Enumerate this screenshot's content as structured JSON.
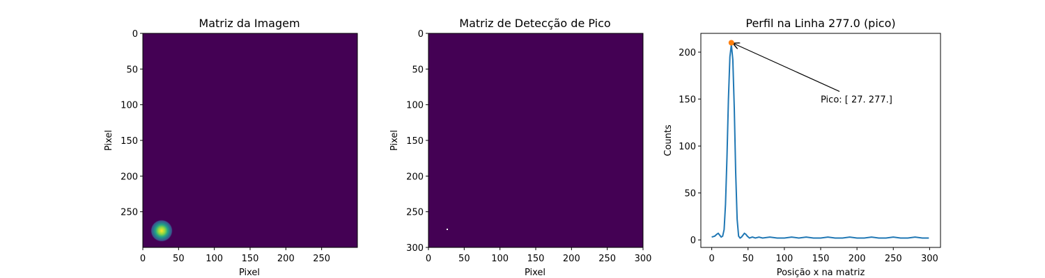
{
  "figure": {
    "colors": {
      "background": "#440154",
      "gaussian_peak": "#fde725",
      "profile_line": "#1f77b4",
      "peak_marker": "#ff7f0e",
      "detection_pixel": "#ffffff"
    },
    "left": {
      "title": "Matriz da Imagem",
      "xlabel": "Pixel",
      "ylabel": "Pixel",
      "xticks": [
        "0",
        "50",
        "100",
        "150",
        "200",
        "250"
      ],
      "yticks": [
        "0",
        "50",
        "100",
        "150",
        "200",
        "250"
      ]
    },
    "middle": {
      "title": "Matriz de Detecção de Pico",
      "xlabel": "Pixel",
      "ylabel": "Pixel",
      "xticks": [
        "0",
        "50",
        "100",
        "150",
        "200",
        "250",
        "300"
      ],
      "yticks": [
        "0",
        "50",
        "100",
        "150",
        "200",
        "250",
        "300"
      ]
    },
    "right": {
      "title": "Perfil na Linha 277.0 (pico)",
      "xlabel": "Posição x na matriz",
      "ylabel": "Counts",
      "xticks": [
        "0",
        "50",
        "100",
        "150",
        "200",
        "250",
        "300"
      ],
      "yticks": [
        "0",
        "50",
        "100",
        "150",
        "200"
      ],
      "annotation": "Pico: [ 27. 277.]"
    }
  },
  "chart_data": [
    {
      "type": "heatmap",
      "title": "Matriz da Imagem",
      "xlabel": "Pixel",
      "ylabel": "Pixel",
      "xlim": [
        0,
        300
      ],
      "ylim": [
        300,
        0
      ],
      "colormap": "viridis",
      "peak": {
        "x": 27,
        "y": 277,
        "value": 210
      }
    },
    {
      "type": "heatmap",
      "title": "Matriz de Detecção de Pico",
      "xlabel": "Pixel",
      "ylabel": "Pixel",
      "xlim": [
        0,
        300
      ],
      "ylim": [
        300,
        0
      ],
      "colormap": "viridis",
      "detected_pixel": {
        "x": 27,
        "y": 277
      }
    },
    {
      "type": "line",
      "title": "Perfil na Linha 277.0 (pico)",
      "xlabel": "Posição x na matriz",
      "ylabel": "Counts",
      "xlim": [
        -15,
        315
      ],
      "ylim": [
        -8,
        220
      ],
      "series": [
        {
          "x": [
            0,
            4,
            7,
            9,
            11,
            13,
            15,
            17,
            19,
            21,
            23,
            25,
            27,
            29,
            31,
            33,
            35,
            37,
            39,
            41,
            43,
            45,
            47,
            49,
            52,
            56,
            60,
            65,
            70,
            80,
            90,
            100,
            110,
            120,
            130,
            140,
            150,
            160,
            170,
            180,
            190,
            200,
            210,
            220,
            230,
            240,
            250,
            260,
            270,
            280,
            290,
            299
          ],
          "values": [
            3,
            4,
            6,
            7,
            5,
            3,
            4,
            11,
            38,
            88,
            150,
            195,
            208,
            192,
            140,
            72,
            22,
            4,
            2,
            3,
            5,
            7,
            6,
            4,
            2,
            3,
            2,
            3,
            2,
            3,
            2,
            2,
            3,
            2,
            3,
            2,
            2,
            3,
            2,
            2,
            3,
            2,
            2,
            3,
            2,
            2,
            3,
            2,
            2,
            3,
            2,
            2
          ]
        }
      ],
      "peak_point": {
        "x": 27,
        "y": 210
      },
      "annotation": {
        "text": "Pico: [ 27. 277.]",
        "x": 150,
        "y": 150
      }
    }
  ]
}
